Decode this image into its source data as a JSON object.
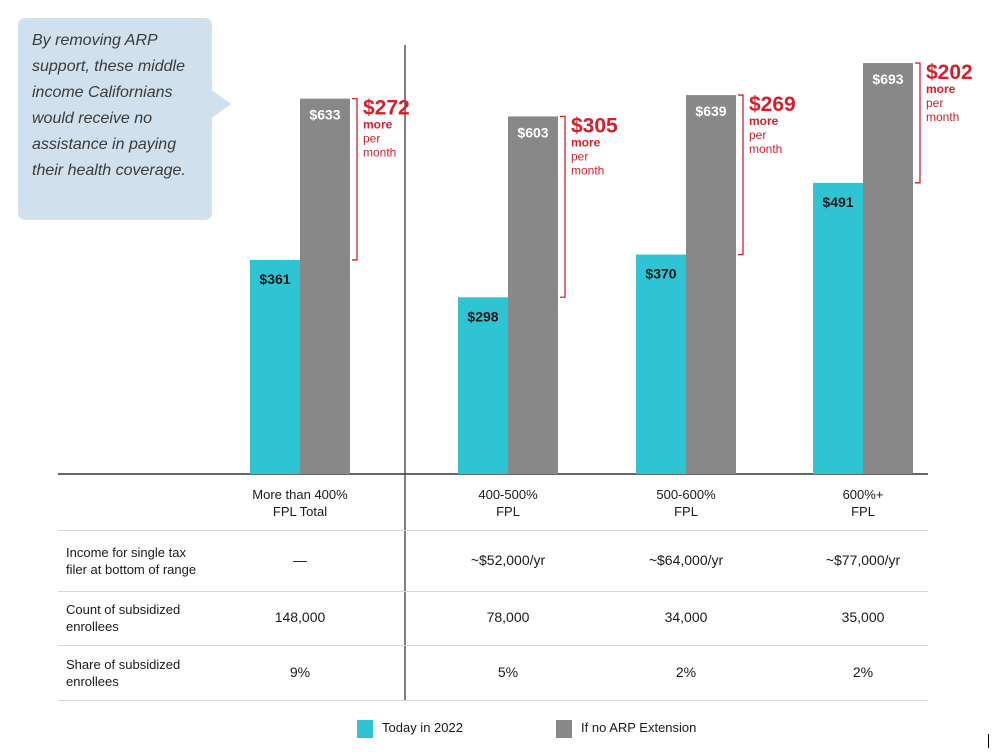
{
  "callout": {
    "text": "By removing ARP support, these middle income Californians would receive no assistance in paying their health coverage."
  },
  "colors": {
    "today": "#2ec4d4",
    "no_arp": "#888888",
    "difference": "#d4202a"
  },
  "chart_data": {
    "type": "bar",
    "categories": [
      "More than 400% FPL Total",
      "400-500% FPL",
      "500-600% FPL",
      "600%+ FPL"
    ],
    "category_lines": [
      [
        "More than 400%",
        "FPL Total"
      ],
      [
        "400-500%",
        "FPL"
      ],
      [
        "500-600%",
        "FPL"
      ],
      [
        "600%+",
        "FPL"
      ]
    ],
    "series": [
      {
        "name": "Today in 2022",
        "values": [
          361,
          298,
          370,
          491
        ],
        "labels": [
          "$361",
          "$298",
          "$370",
          "$491"
        ]
      },
      {
        "name": "If no ARP Extension",
        "values": [
          633,
          603,
          639,
          693
        ],
        "labels": [
          "$633",
          "$603",
          "$639",
          "$693"
        ]
      }
    ],
    "differences": [
      {
        "amount": "$272",
        "lines": [
          "more",
          "per",
          "month"
        ]
      },
      {
        "amount": "$305",
        "lines": [
          "more",
          "per",
          "month"
        ]
      },
      {
        "amount": "$269",
        "lines": [
          "more",
          "per",
          "month"
        ]
      },
      {
        "amount": "$202",
        "lines": [
          "more",
          "per",
          "month"
        ]
      }
    ],
    "ylim": [
      0,
      700
    ],
    "legend": "bottom",
    "grid": false
  },
  "table": {
    "rows": [
      {
        "label": [
          "Income for single tax",
          "filer at bottom of range"
        ],
        "values": [
          "—",
          "~$52,000/yr",
          "~$64,000/yr",
          "~$77,000/yr"
        ]
      },
      {
        "label": [
          "Count of subsidized",
          "enrollees"
        ],
        "values": [
          "148,000",
          "78,000",
          "34,000",
          "35,000"
        ]
      },
      {
        "label": [
          "Share of subsidized",
          "enrollees"
        ],
        "values": [
          "9%",
          "5%",
          "2%",
          "2%"
        ]
      }
    ]
  },
  "legend": {
    "today": "Today in 2022",
    "no_arp": "If no ARP Extension"
  }
}
